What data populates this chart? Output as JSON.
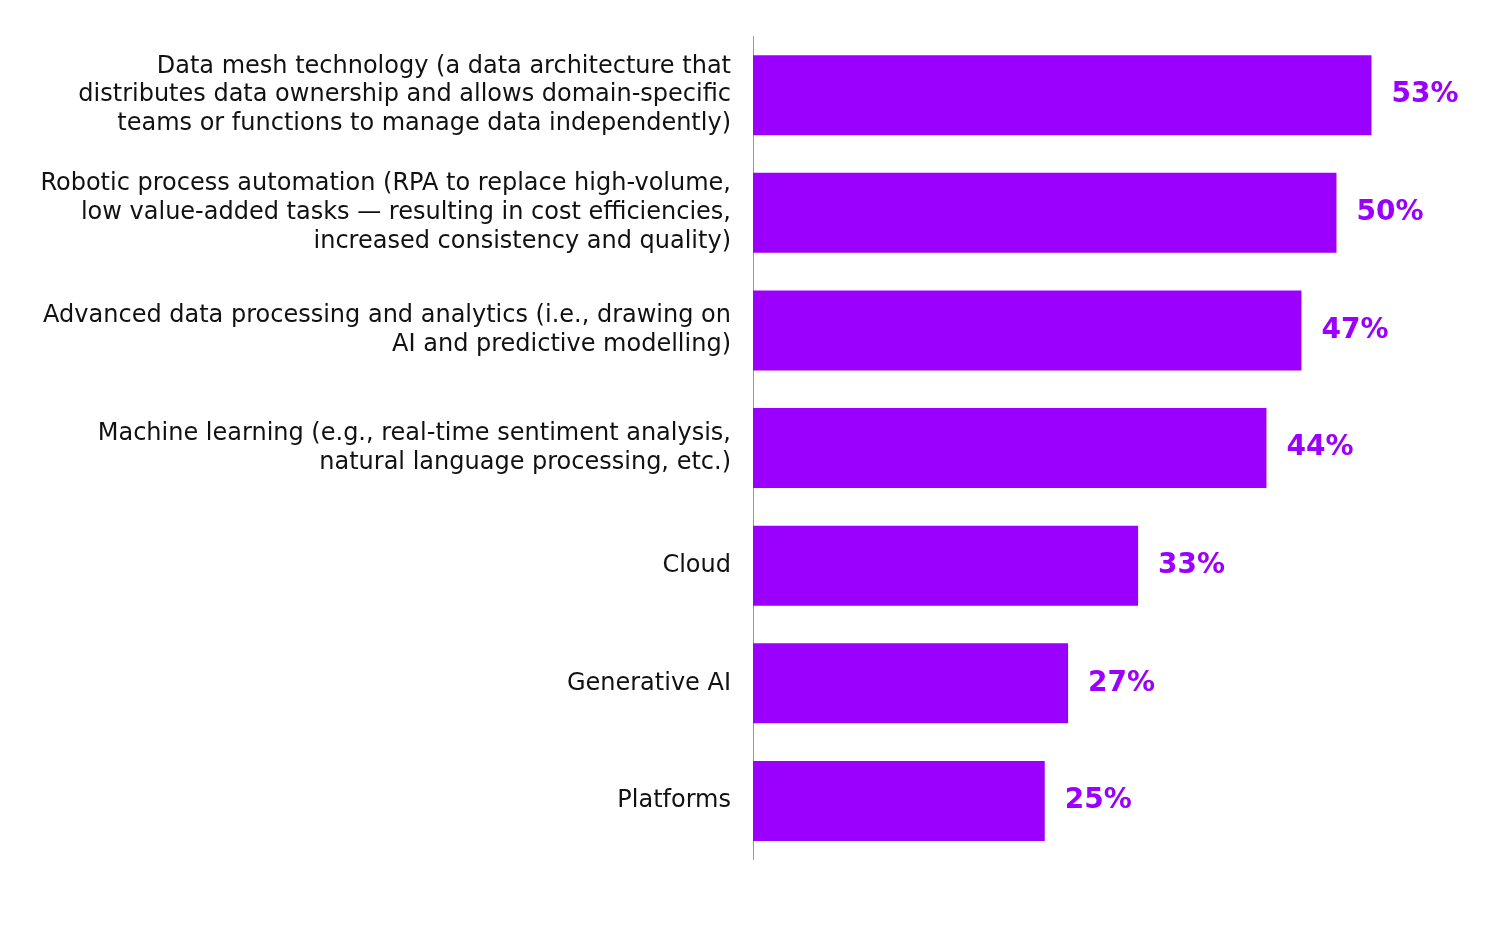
{
  "chart_data": {
    "type": "bar",
    "orientation": "horizontal",
    "categories": [
      "Data mesh technology (a data architecture that distributes data ownership and allows domain-specific teams or functions to manage data independently)",
      "Robotic process automation (RPA to replace high-volume, low value-added tasks — resulting in cost efficiencies, increased consistency and quality)",
      "Advanced data processing and analytics (i.e., drawing on AI and predictive modelling)",
      "Machine learning (e.g., real-time sentiment analysis, natural language processing, etc.)",
      "Cloud",
      "Generative AI",
      "Platforms"
    ],
    "values": [
      53,
      50,
      47,
      44,
      33,
      27,
      25
    ],
    "value_labels": [
      "53%",
      "50%",
      "47%",
      "44%",
      "33%",
      "27%",
      "25%"
    ],
    "color": "#9b00ff",
    "legend": false
  }
}
